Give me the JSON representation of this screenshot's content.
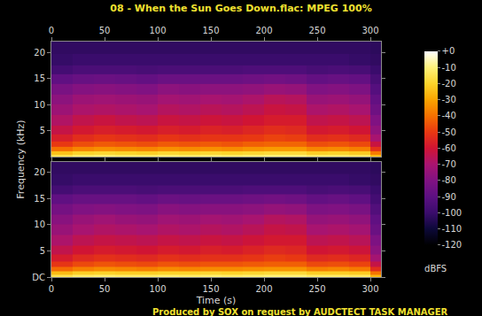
{
  "chart_data": {
    "type": "heatmap",
    "title": "08 - When the Sun Goes Down.flac: MPEG 100%",
    "x_label": "Time (s)",
    "y_label": "Frequency (kHz)",
    "footer": "Produced by SOX on request by AUDCTECT TASK MANAGER",
    "x": [
      10,
      30,
      50,
      70,
      90,
      110,
      130,
      150,
      170,
      190,
      210,
      230,
      250,
      270,
      290,
      310
    ],
    "y": [
      0.25,
      0.75,
      1.5,
      2.5,
      3.5,
      5,
      7,
      9,
      11,
      13,
      15,
      16.5,
      18.5,
      21
    ],
    "xlim": [
      0,
      310
    ],
    "xticks": [
      0,
      50,
      100,
      150,
      200,
      250,
      300
    ],
    "ylim": [
      0,
      22.05
    ],
    "colorbar_range": [
      -120,
      0
    ],
    "colorbar_ticks": [
      {
        "value": 0,
        "label": "+0"
      },
      -10,
      -20,
      -30,
      -40,
      -50,
      -60,
      -70,
      -80,
      -90,
      -100,
      -110,
      -120
    ],
    "colorbar_label": "dBFS",
    "series": [
      {
        "yticks": [
          5,
          10,
          15,
          20
        ],
        "cells": [
          [
            -15,
            -24,
            -40,
            -50,
            -57,
            -63,
            -68,
            -73,
            -77,
            -82,
            -89,
            -97,
            -101,
            -102
          ],
          [
            -12,
            -20,
            -36,
            -46,
            -53,
            -59,
            -64,
            -69,
            -73,
            -79,
            -87,
            -95,
            -100,
            -102
          ],
          [
            -11,
            -19,
            -34,
            -44,
            -51,
            -57,
            -62,
            -68,
            -72,
            -78,
            -86,
            -95,
            -100,
            -102
          ],
          [
            -12,
            -20,
            -35,
            -45,
            -52,
            -58,
            -64,
            -69,
            -73,
            -79,
            -87,
            -95,
            -100,
            -102
          ],
          [
            -12,
            -21,
            -36,
            -46,
            -53,
            -59,
            -65,
            -70,
            -74,
            -80,
            -88,
            -96,
            -100,
            -102
          ],
          [
            -11,
            -19,
            -34,
            -44,
            -51,
            -57,
            -62,
            -67,
            -71,
            -77,
            -86,
            -95,
            -100,
            -102
          ],
          [
            -12,
            -20,
            -35,
            -45,
            -52,
            -58,
            -63,
            -68,
            -72,
            -78,
            -86,
            -95,
            -100,
            -102
          ],
          [
            -11,
            -19,
            -34,
            -44,
            -51,
            -56,
            -61,
            -66,
            -70,
            -77,
            -86,
            -95,
            -100,
            -102
          ],
          [
            -12,
            -20,
            -35,
            -45,
            -51,
            -57,
            -62,
            -67,
            -71,
            -77,
            -86,
            -95,
            -100,
            -102
          ],
          [
            -11,
            -19,
            -33,
            -43,
            -50,
            -55,
            -60,
            -65,
            -69,
            -76,
            -85,
            -94,
            -100,
            -102
          ],
          [
            -10,
            -18,
            -32,
            -42,
            -48,
            -53,
            -58,
            -62,
            -66,
            -74,
            -84,
            -94,
            -100,
            -102
          ],
          [
            -10,
            -18,
            -32,
            -42,
            -49,
            -54,
            -58,
            -63,
            -67,
            -75,
            -85,
            -94,
            -100,
            -102
          ],
          [
            -12,
            -21,
            -36,
            -46,
            -53,
            -59,
            -64,
            -69,
            -74,
            -80,
            -88,
            -96,
            -100,
            -102
          ],
          [
            -12,
            -20,
            -35,
            -45,
            -52,
            -58,
            -63,
            -68,
            -73,
            -79,
            -87,
            -95,
            -100,
            -102
          ],
          [
            -13,
            -22,
            -37,
            -47,
            -54,
            -60,
            -65,
            -70,
            -75,
            -81,
            -88,
            -96,
            -101,
            -102
          ],
          [
            -25,
            -38,
            -52,
            -62,
            -70,
            -76,
            -80,
            -85,
            -88,
            -92,
            -96,
            -100,
            -102,
            -103
          ]
        ]
      },
      {
        "yticks": [
          {
            "value": 0,
            "label": "DC"
          },
          5,
          10,
          15,
          20
        ],
        "cells": [
          [
            -15,
            -25,
            -41,
            -51,
            -58,
            -64,
            -69,
            -74,
            -78,
            -83,
            -89,
            -97,
            -101,
            -102
          ],
          [
            -12,
            -21,
            -37,
            -47,
            -54,
            -60,
            -65,
            -70,
            -74,
            -80,
            -87,
            -95,
            -100,
            -102
          ],
          [
            -11,
            -20,
            -35,
            -45,
            -52,
            -58,
            -63,
            -68,
            -72,
            -79,
            -87,
            -95,
            -100,
            -102
          ],
          [
            -12,
            -21,
            -36,
            -46,
            -53,
            -59,
            -64,
            -69,
            -74,
            -80,
            -87,
            -95,
            -100,
            -102
          ],
          [
            -12,
            -21,
            -37,
            -47,
            -54,
            -60,
            -65,
            -70,
            -75,
            -81,
            -88,
            -96,
            -100,
            -102
          ],
          [
            -11,
            -20,
            -35,
            -45,
            -52,
            -58,
            -63,
            -68,
            -72,
            -78,
            -86,
            -95,
            -100,
            -102
          ],
          [
            -12,
            -20,
            -36,
            -46,
            -53,
            -59,
            -64,
            -69,
            -73,
            -79,
            -87,
            -95,
            -100,
            -102
          ],
          [
            -11,
            -19,
            -35,
            -45,
            -52,
            -57,
            -62,
            -67,
            -71,
            -78,
            -86,
            -95,
            -100,
            -102
          ],
          [
            -12,
            -20,
            -35,
            -45,
            -52,
            -58,
            -63,
            -68,
            -72,
            -78,
            -86,
            -95,
            -100,
            -102
          ],
          [
            -11,
            -19,
            -34,
            -44,
            -51,
            -56,
            -61,
            -66,
            -70,
            -77,
            -85,
            -94,
            -100,
            -102
          ],
          [
            -10,
            -18,
            -33,
            -43,
            -49,
            -54,
            -59,
            -63,
            -67,
            -75,
            -84,
            -94,
            -100,
            -102
          ],
          [
            -10,
            -18,
            -33,
            -43,
            -50,
            -55,
            -59,
            -64,
            -68,
            -76,
            -85,
            -94,
            -100,
            -102
          ],
          [
            -12,
            -21,
            -37,
            -47,
            -54,
            -60,
            -65,
            -70,
            -75,
            -81,
            -88,
            -96,
            -100,
            -102
          ],
          [
            -12,
            -21,
            -36,
            -46,
            -53,
            -59,
            -64,
            -69,
            -74,
            -80,
            -87,
            -95,
            -100,
            -102
          ],
          [
            -13,
            -22,
            -38,
            -48,
            -55,
            -61,
            -66,
            -71,
            -76,
            -82,
            -89,
            -96,
            -101,
            -102
          ],
          [
            -26,
            -39,
            -53,
            -63,
            -71,
            -77,
            -81,
            -86,
            -89,
            -93,
            -97,
            -100,
            -102,
            -103
          ]
        ]
      }
    ]
  }
}
